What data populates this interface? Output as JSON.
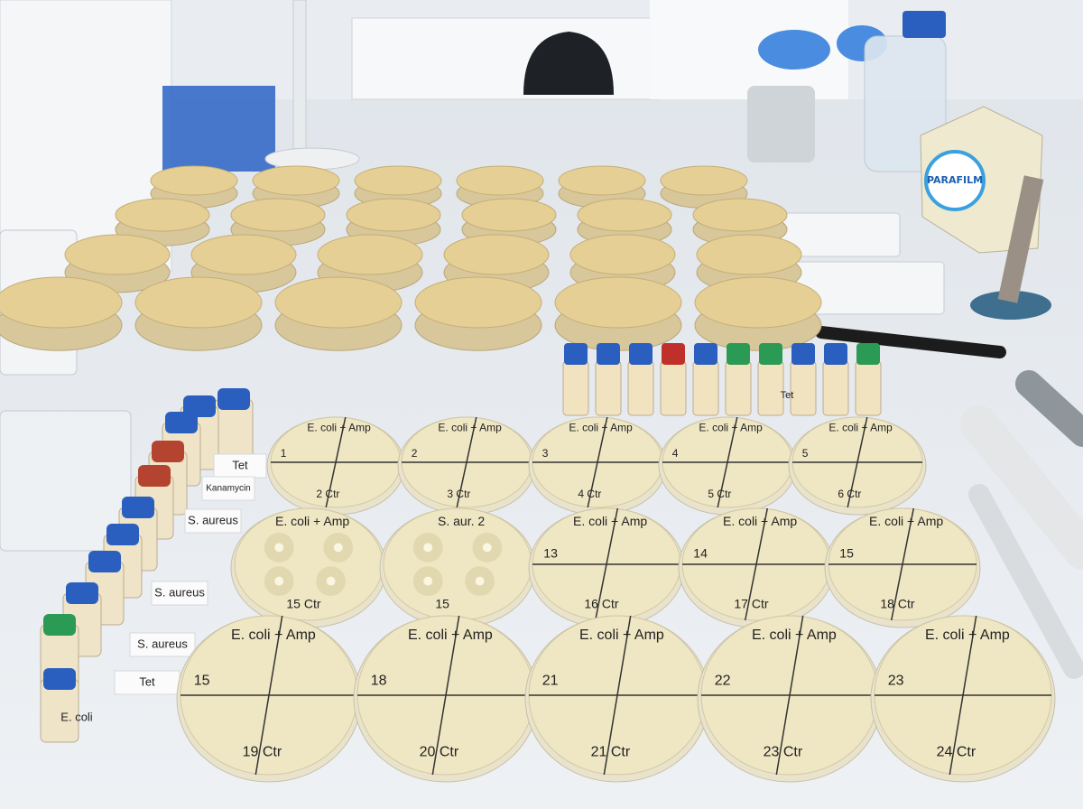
{
  "box_label": "PARAFILM",
  "paper_labels": [
    "Tet",
    "Kanamycin",
    "S. aureus",
    "S. aureus",
    "S. aureus",
    "Tet"
  ],
  "vial_labels": [
    "Tet",
    "E. coli"
  ],
  "plate_rows": [
    [
      {
        "title": "E. coli + Amp",
        "num": "1",
        "ctr": "2 Ctr"
      },
      {
        "title": "E. coli + Amp",
        "num": "2",
        "ctr": "3 Ctr"
      },
      {
        "title": "E. coli + Amp",
        "num": "3",
        "ctr": "4 Ctr"
      },
      {
        "title": "E. coli + Amp",
        "num": "4",
        "ctr": "5 Ctr"
      },
      {
        "title": "E. coli + Amp",
        "num": "5",
        "ctr": "6 Ctr"
      }
    ],
    [
      {
        "title": "E. coli + Amp",
        "ctr": "15 Ctr"
      },
      {
        "title": "S. aur. 2",
        "ctr": "15"
      },
      {
        "title": "E. coli + Amp",
        "num": "13",
        "ctr": "16 Ctr"
      },
      {
        "title": "E. coli + Amp",
        "num": "14",
        "ctr": "17 Ctr"
      },
      {
        "title": "E. coli + Amp",
        "num": "15",
        "ctr": "18 Ctr"
      }
    ],
    [
      {
        "title": "E. coli + Amp",
        "num": "15",
        "ctr": "19 Ctr"
      },
      {
        "title": "E. coli + Amp",
        "num": "18",
        "ctr": "20 Ctr"
      },
      {
        "title": "E. coli + Amp",
        "num": "21",
        "ctr": "21 Ctr"
      },
      {
        "title": "E. coli + Amp",
        "num": "22",
        "ctr": "23 Ctr"
      },
      {
        "title": "E. coli + Amp",
        "num": "23",
        "ctr": "24 Ctr"
      }
    ]
  ]
}
